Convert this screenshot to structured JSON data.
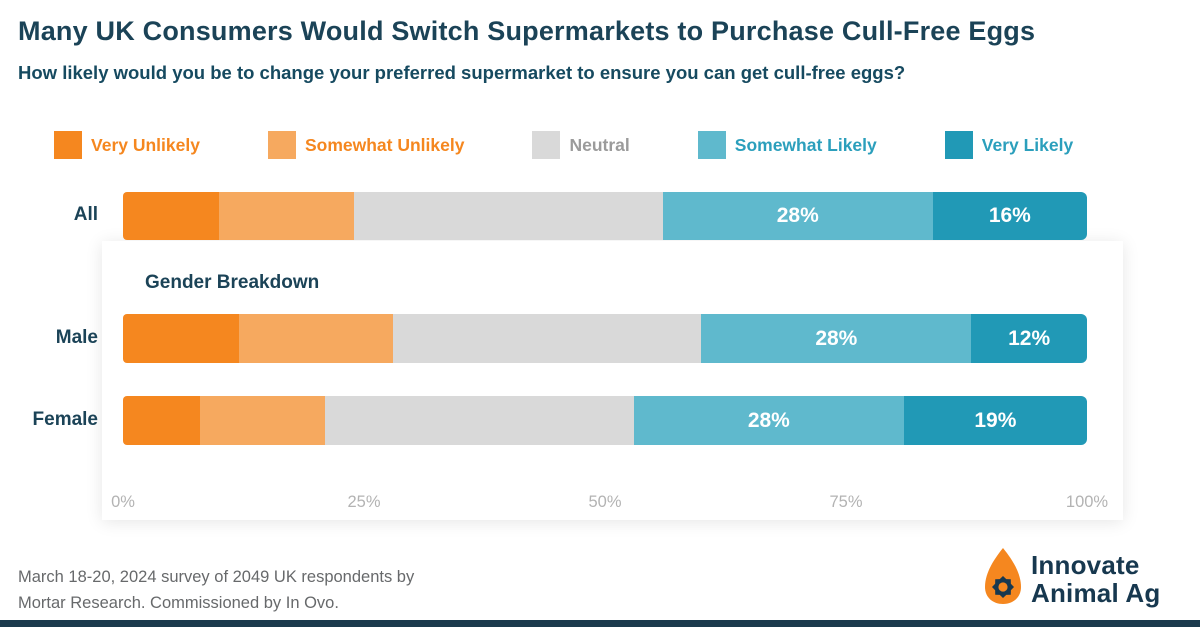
{
  "header": {
    "title": "Many UK Consumers Would Switch Supermarkets to Purchase Cull-Free Eggs",
    "subtitle": "How likely would you be to change your preferred supermarket to ensure you can get cull-free eggs?"
  },
  "legend": {
    "items": [
      {
        "label": "Very Unlikely",
        "swatch_color": "#F5871F",
        "text_color": "#F5871F"
      },
      {
        "label": "Somewhat Unlikely",
        "swatch_color": "#F6A95F",
        "text_color": "#F5871F"
      },
      {
        "label": "Neutral",
        "swatch_color": "#D9D9D9",
        "text_color": "#9B9B9B"
      },
      {
        "label": "Somewhat Likely",
        "swatch_color": "#5FB9CD",
        "text_color": "#2B9FBC"
      },
      {
        "label": "Very Likely",
        "swatch_color": "#2199B6",
        "text_color": "#2B9FBC"
      }
    ]
  },
  "chart_data": {
    "type": "bar",
    "orientation": "horizontal",
    "stacked": true,
    "unit": "%",
    "categories": [
      "All",
      "Male",
      "Female"
    ],
    "series": [
      {
        "name": "Very Unlikely",
        "color": "#F5871F",
        "values": [
          10,
          12,
          8
        ],
        "show_labels": false
      },
      {
        "name": "Somewhat Unlikely",
        "color": "#F6A95F",
        "values": [
          14,
          16,
          13
        ],
        "show_labels": false
      },
      {
        "name": "Neutral",
        "color": "#D9D9D9",
        "values": [
          32,
          32,
          32
        ],
        "show_labels": false
      },
      {
        "name": "Somewhat Likely",
        "color": "#5FB9CD",
        "values": [
          28,
          28,
          28
        ],
        "show_labels": true
      },
      {
        "name": "Very Likely",
        "color": "#2199B6",
        "values": [
          16,
          12,
          19
        ],
        "show_labels": true
      }
    ],
    "x_axis": {
      "ticks": [
        "0%",
        "25%",
        "50%",
        "75%",
        "100%"
      ],
      "range": [
        0,
        100
      ]
    },
    "inset_title": "Gender Breakdown",
    "legend_position": "top",
    "grid": false
  },
  "footer": {
    "line1": "March 18-20, 2024 survey of 2049 UK respondents by",
    "line2": "Mortar Research. Commissioned by In Ovo.",
    "logo_line1": "Innovate",
    "logo_line2": "Animal Ag"
  },
  "colors": {
    "title_navy": "#1B4357",
    "logo_navy": "#17384F",
    "egg_orange": "#F5871F",
    "axis_gray": "#B3B3B3",
    "footnote_gray": "#67696B",
    "bottom_bar": "#1B3A4D"
  }
}
